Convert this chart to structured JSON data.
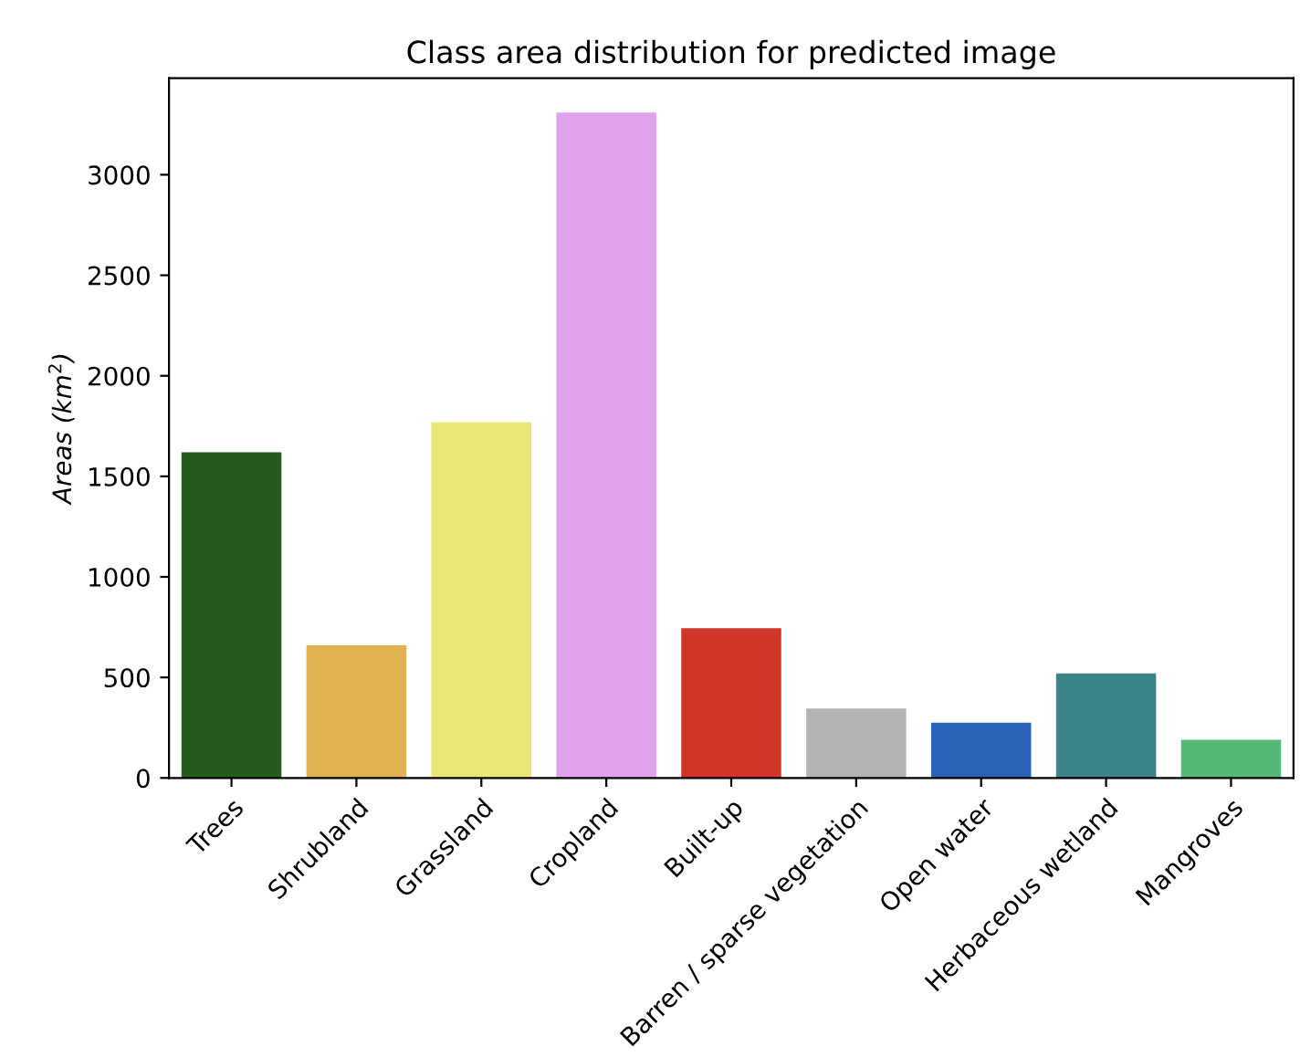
{
  "chart_data": {
    "type": "bar",
    "title": "Class area distribution for predicted image",
    "ylabel": "Areas (km$^{2}$)",
    "categories": [
      "Trees",
      "Shrubland",
      "Grassland",
      "Cropland",
      "Built-up",
      "Barren / sparse vegetation",
      "Open water",
      "Herbaceous wetland",
      "Mangroves"
    ],
    "values": [
      1620,
      660,
      1770,
      3310,
      745,
      345,
      275,
      520,
      190
    ],
    "colors": [
      "#245a1b",
      "#e0b350",
      "#eae874",
      "#e0a2ec",
      "#d13428",
      "#b3b3b3",
      "#2a62b9",
      "#3a8389",
      "#55b877"
    ],
    "ylim": [
      0,
      3480
    ],
    "yticks": [
      0,
      500,
      1000,
      1500,
      2000,
      2500,
      3000
    ],
    "grid": false,
    "legend": false
  }
}
